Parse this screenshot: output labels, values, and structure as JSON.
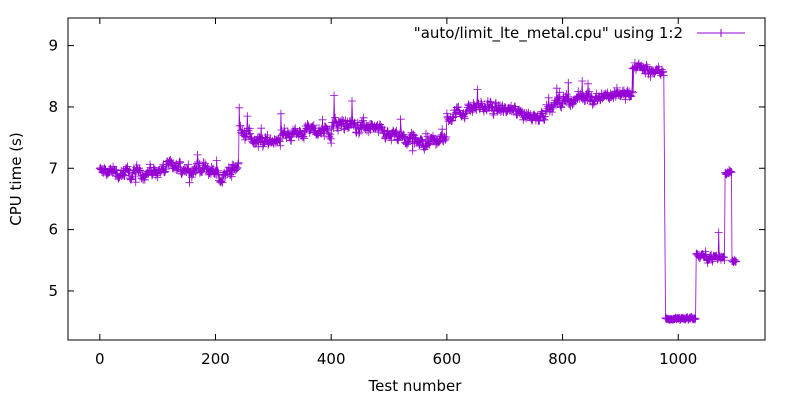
{
  "chart_data": {
    "type": "line",
    "title": "",
    "xlabel": "Test number",
    "ylabel": "CPU time (s)",
    "xlim": [
      -55,
      1150
    ],
    "ylim": [
      4.2,
      9.45
    ],
    "xticks": [
      0,
      200,
      400,
      600,
      800,
      1000
    ],
    "yticks": [
      5,
      6,
      7,
      8,
      9
    ],
    "grid": false,
    "legend_position": "top-right",
    "series": [
      {
        "name": "\"auto/limit_lte_metal.cpu\" using 1:2",
        "color": "#9400d3",
        "marker": "plus",
        "segments": [
          {
            "from": 0,
            "to": 240,
            "levels": [
              [
                0,
                6.95
              ],
              [
                60,
                6.9
              ],
              [
                120,
                7.0
              ],
              [
                180,
                7.0
              ],
              [
                210,
                6.85
              ],
              [
                240,
                7.05
              ]
            ],
            "noise": 0.15,
            "spikes": 0.25
          },
          {
            "from": 241,
            "to": 400,
            "levels": [
              [
                241,
                7.65
              ],
              [
                280,
                7.4
              ],
              [
                320,
                7.55
              ],
              [
                360,
                7.6
              ],
              [
                400,
                7.6
              ]
            ],
            "noise": 0.15,
            "spikes": 0.3
          },
          {
            "from": 401,
            "to": 600,
            "levels": [
              [
                401,
                7.7
              ],
              [
                450,
                7.7
              ],
              [
                500,
                7.55
              ],
              [
                550,
                7.4
              ],
              [
                600,
                7.5
              ]
            ],
            "noise": 0.17,
            "spikes": 0.35
          },
          {
            "from": 601,
            "to": 760,
            "levels": [
              [
                601,
                7.85
              ],
              [
                650,
                8.0
              ],
              [
                700,
                7.95
              ],
              [
                760,
                7.85
              ]
            ],
            "noise": 0.15,
            "spikes": 0.3
          },
          {
            "from": 761,
            "to": 922,
            "levels": [
              [
                761,
                7.85
              ],
              [
                800,
                8.1
              ],
              [
                840,
                8.15
              ],
              [
                880,
                8.2
              ],
              [
                922,
                8.2
              ]
            ],
            "noise": 0.15,
            "spikes": 0.3
          },
          {
            "from": 923,
            "to": 975,
            "levels": [
              [
                923,
                8.65
              ],
              [
                950,
                8.6
              ],
              [
                975,
                8.55
              ]
            ],
            "noise": 0.12,
            "spikes": 0.3
          },
          {
            "from": 978,
            "to": 1030,
            "levels": [
              [
                978,
                4.55
              ],
              [
                1030,
                4.55
              ]
            ],
            "noise": 0.04,
            "spikes": 0.0
          },
          {
            "from": 1031,
            "to": 1080,
            "levels": [
              [
                1031,
                5.6
              ],
              [
                1050,
                5.55
              ],
              [
                1080,
                5.55
              ]
            ],
            "noise": 0.09,
            "spikes": 0.35
          },
          {
            "from": 1081,
            "to": 1092,
            "levels": [
              [
                1081,
                6.9
              ],
              [
                1092,
                6.95
              ]
            ],
            "noise": 0.06,
            "spikes": 0.05
          },
          {
            "from": 1093,
            "to": 1100,
            "levels": [
              [
                1093,
                5.5
              ],
              [
                1100,
                5.5
              ]
            ],
            "noise": 0.04,
            "spikes": 0.0
          }
        ]
      }
    ]
  }
}
